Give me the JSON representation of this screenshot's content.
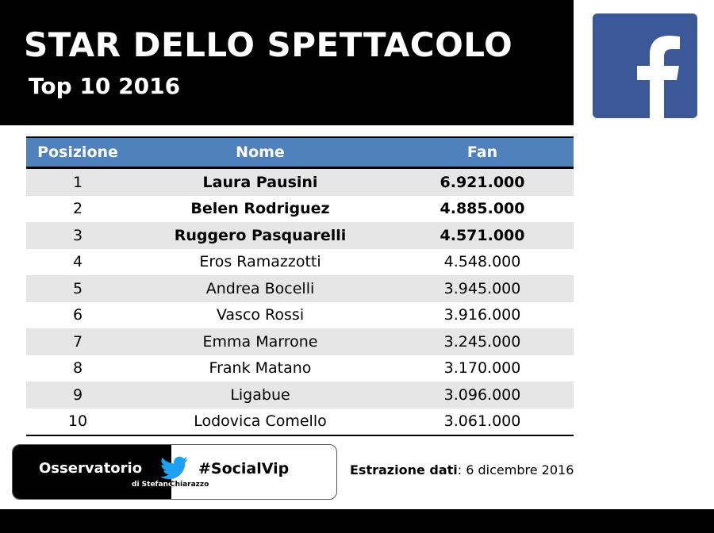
{
  "header": {
    "title": "STAR DELLO SPETTACOLO",
    "subtitle": "Top 10 2016"
  },
  "logo": {
    "icon": "facebook-icon",
    "color": "#3b5998"
  },
  "table": {
    "header_color": "#4f81bd",
    "columns": [
      "Posizione",
      "Nome",
      "Fan"
    ],
    "rows": [
      {
        "pos": "1",
        "name": "Laura Pausini",
        "fan": "6.921.000",
        "bold": true
      },
      {
        "pos": "2",
        "name": "Belen Rodriguez",
        "fan": "4.885.000",
        "bold": true
      },
      {
        "pos": "3",
        "name": "Ruggero Pasquarelli",
        "fan": "4.571.000",
        "bold": true
      },
      {
        "pos": "4",
        "name": "Eros Ramazzotti",
        "fan": "4.548.000",
        "bold": false
      },
      {
        "pos": "5",
        "name": "Andrea Bocelli",
        "fan": "3.945.000",
        "bold": false
      },
      {
        "pos": "6",
        "name": "Vasco Rossi",
        "fan": "3.916.000",
        "bold": false
      },
      {
        "pos": "7",
        "name": "Emma Marrone",
        "fan": "3.245.000",
        "bold": false
      },
      {
        "pos": "8",
        "name": "Frank Matano",
        "fan": "3.170.000",
        "bold": false
      },
      {
        "pos": "9",
        "name": "Ligabue",
        "fan": "3.096.000",
        "bold": false
      },
      {
        "pos": "10",
        "name": "Lodovica Comello",
        "fan": "3.061.000",
        "bold": false
      }
    ]
  },
  "badge": {
    "osservatorio": "Osservatorio",
    "di_stefano": "di Stefano",
    "chiarazzo": "Chiarazzo",
    "hashtag": "#SocialVip",
    "bird_icon": "twitter-bird-icon",
    "bird_color": "#1da1f2"
  },
  "extraction": {
    "label": "Estrazione dati",
    "value": ": 6 dicembre 2016"
  }
}
